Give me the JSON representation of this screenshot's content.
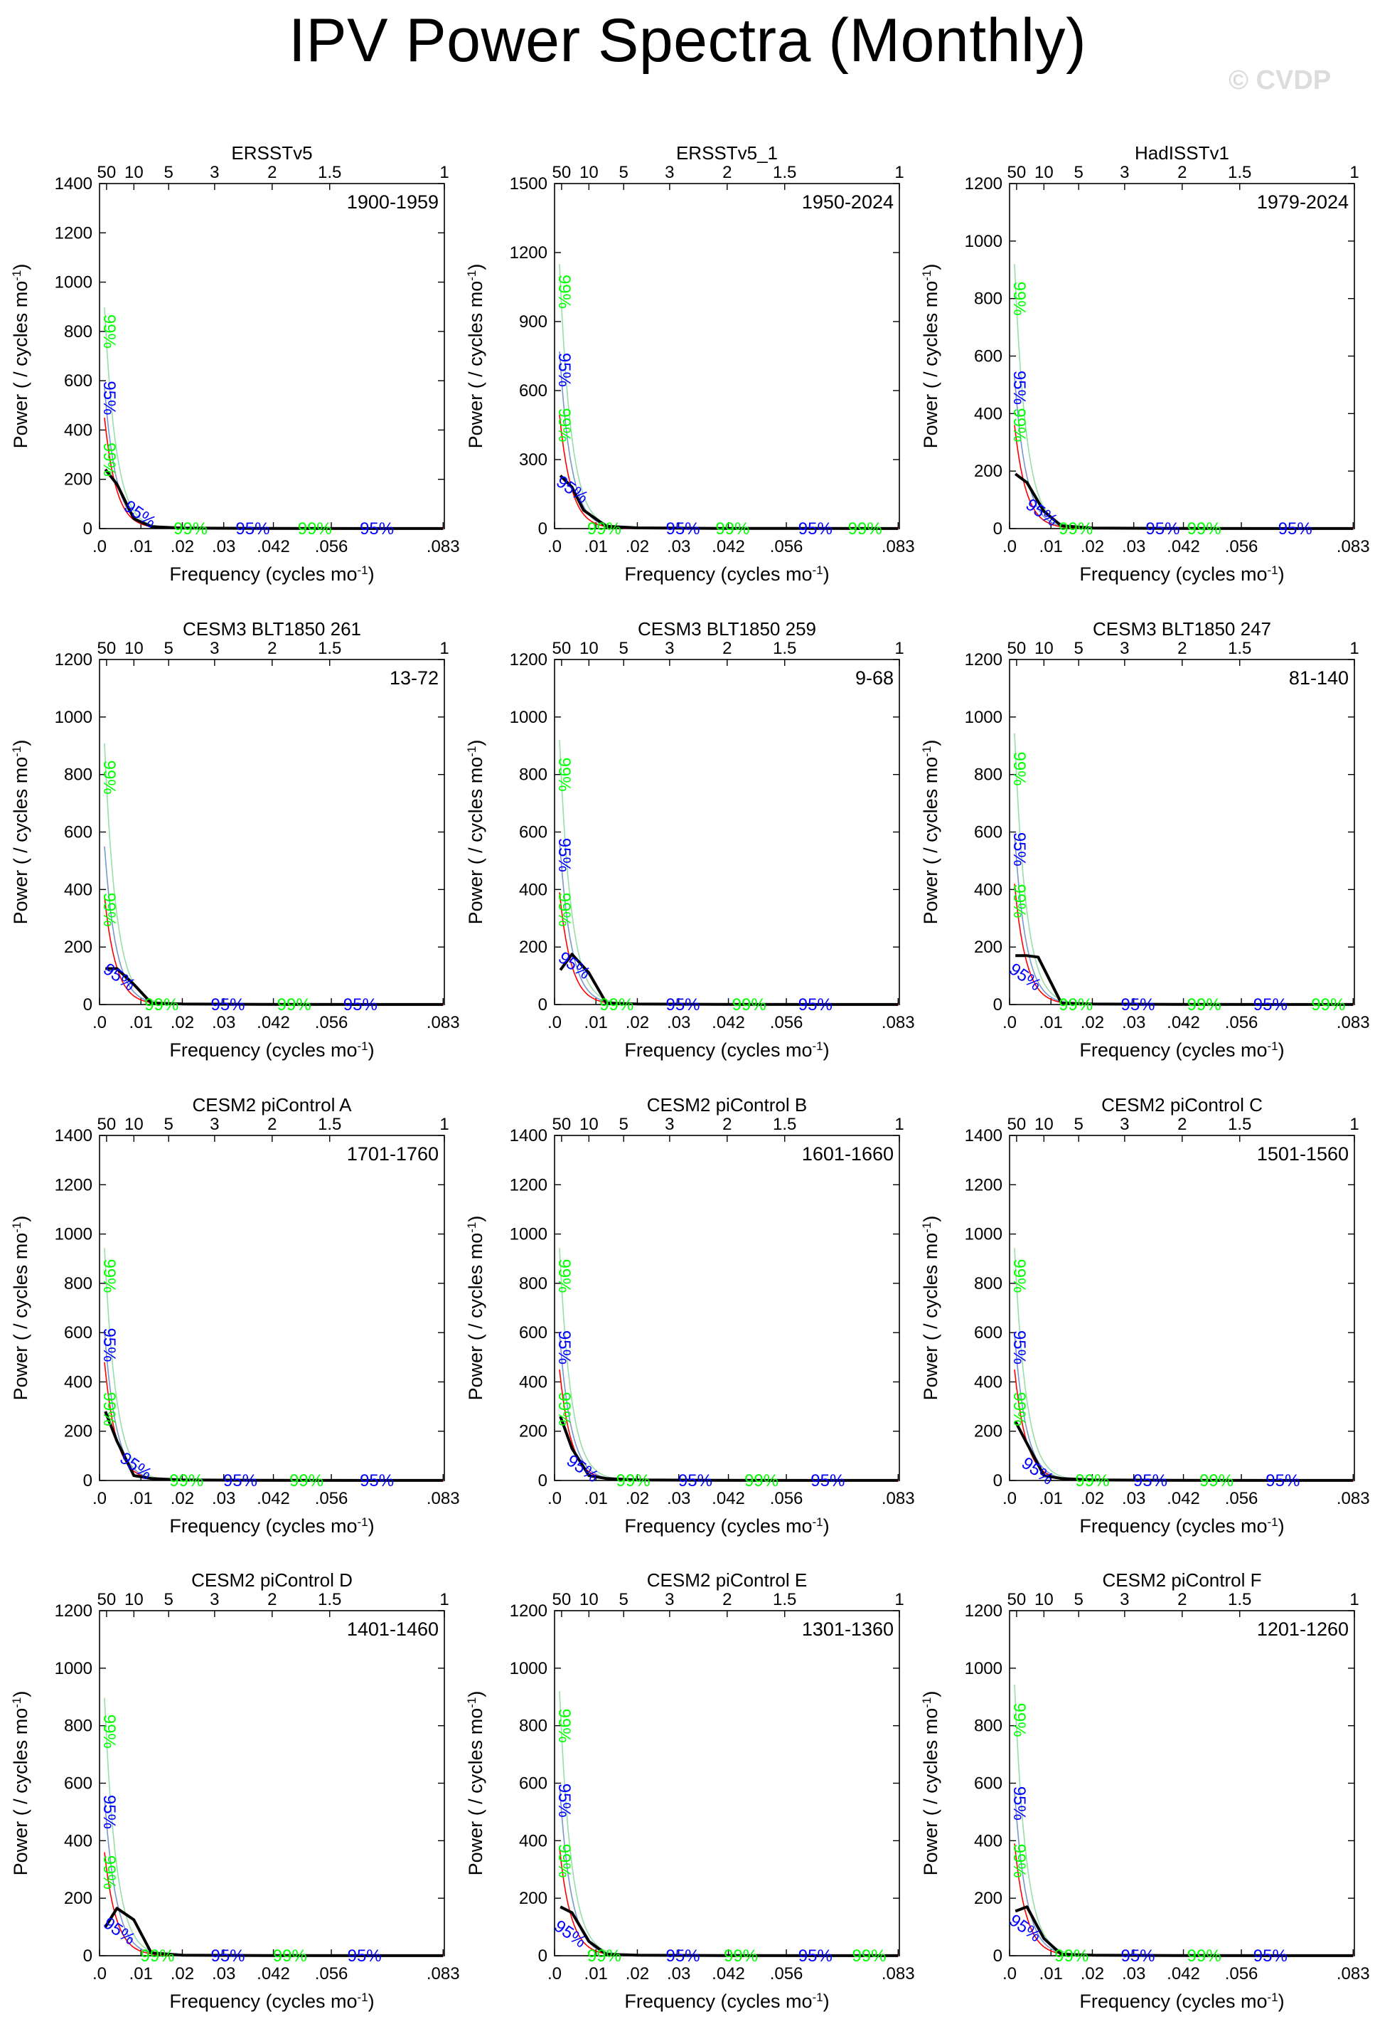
{
  "page": {
    "title": "IPV Power Spectra (Monthly)",
    "watermark": "© CVDP"
  },
  "colors": {
    "spectrum": "#000000",
    "red_noise": "#ff0000",
    "sig95": "#0000ff",
    "sig99": "#00ff00",
    "sig_line_95": "#7799cc",
    "sig_line_99": "#99ddaa",
    "axis": "#000000"
  },
  "axis_text": {
    "xlabel": "Frequency (cycles mo",
    "ylabel": "Power ( / cycles mo",
    "superscript": "-1",
    "bottom_ticks": [
      ".0",
      ".01",
      ".02",
      ".03",
      ".042",
      ".056",
      ".083"
    ],
    "top_ticks": [
      "50",
      "10",
      "5",
      "3",
      "2",
      "1.5",
      "1"
    ],
    "label95": "95%",
    "label99": "99%"
  },
  "chart_data": [
    {
      "type": "line",
      "title": "ERSSTv5",
      "period": "1900-1959",
      "ylim": [
        0,
        1400
      ],
      "yticks": [
        0,
        200,
        400,
        600,
        800,
        1000,
        1200,
        1400
      ],
      "x": [
        0.0014,
        0.0042,
        0.0083,
        0.0125,
        0.02,
        0.04,
        0.083
      ],
      "spectrum": [
        240,
        180,
        40,
        8,
        2,
        0.5,
        0.2
      ],
      "red_noise_peak": 300,
      "sig95_peak": 520,
      "sig99_peak": 780,
      "labels95": [
        [
          0.001,
          530
        ],
        [
          0.009,
          40
        ],
        [
          0.037,
          0
        ],
        [
          0.067,
          0
        ]
      ],
      "labels99": [
        [
          0.001,
          800
        ],
        [
          0.001,
          280
        ],
        [
          0.022,
          0
        ],
        [
          0.052,
          0
        ]
      ]
    },
    {
      "type": "line",
      "title": "ERSSTv5_1",
      "period": "1950-2024",
      "ylim": [
        0,
        1500
      ],
      "yticks": [
        0,
        300,
        600,
        900,
        1200,
        1500
      ],
      "x": [
        0.0014,
        0.0042,
        0.007,
        0.0125,
        0.02,
        0.04,
        0.083
      ],
      "spectrum": [
        230,
        180,
        80,
        10,
        3,
        1,
        0.2
      ],
      "red_noise_peak": 330,
      "sig95_peak": 700,
      "sig99_peak": 1000,
      "labels95": [
        [
          0.001,
          690
        ],
        [
          0.0035,
          150
        ],
        [
          0.031,
          0
        ],
        [
          0.063,
          0
        ]
      ],
      "labels99": [
        [
          0.001,
          1030
        ],
        [
          0.001,
          450
        ],
        [
          0.012,
          0
        ],
        [
          0.043,
          0
        ],
        [
          0.075,
          0
        ]
      ]
    },
    {
      "type": "line",
      "title": "HadISSTv1",
      "period": "1979-2024",
      "ylim": [
        0,
        1200
      ],
      "yticks": [
        0,
        200,
        400,
        600,
        800,
        1000,
        1200
      ],
      "x": [
        0.0014,
        0.0042,
        0.0083,
        0.0125,
        0.02,
        0.04,
        0.083
      ],
      "spectrum": [
        190,
        160,
        60,
        10,
        2,
        0.5,
        0.2
      ],
      "red_noise_peak": 240,
      "sig95_peak": 480,
      "sig99_peak": 800,
      "labels95": [
        [
          0.001,
          490
        ],
        [
          0.007,
          40
        ],
        [
          0.037,
          0
        ],
        [
          0.069,
          0
        ]
      ],
      "labels99": [
        [
          0.001,
          800
        ],
        [
          0.001,
          360
        ],
        [
          0.016,
          0
        ],
        [
          0.047,
          0
        ]
      ]
    },
    {
      "type": "line",
      "title": "CESM3 BLT1850 261",
      "period": "13-72",
      "ylim": [
        0,
        1200
      ],
      "yticks": [
        0,
        200,
        400,
        600,
        800,
        1000,
        1200
      ],
      "x": [
        0.0014,
        0.0042,
        0.0083,
        0.0125,
        0.02,
        0.04,
        0.083
      ],
      "spectrum": [
        125,
        125,
        70,
        5,
        2,
        0.5,
        0.2
      ],
      "red_noise_peak": 250,
      "sig95_peak": 500,
      "sig99_peak": 790,
      "labels95": [
        [
          0.004,
          80
        ],
        [
          0.031,
          0
        ],
        [
          0.063,
          0
        ]
      ],
      "labels99": [
        [
          0.001,
          790
        ],
        [
          0.001,
          330
        ],
        [
          0.015,
          0
        ],
        [
          0.047,
          0
        ]
      ]
    },
    {
      "type": "line",
      "title": "CESM3 BLT1850 259",
      "period": "9-68",
      "ylim": [
        0,
        1200
      ],
      "yticks": [
        0,
        200,
        400,
        600,
        800,
        1000,
        1200
      ],
      "x": [
        0.0014,
        0.0042,
        0.0083,
        0.0125,
        0.02,
        0.04,
        0.083
      ],
      "spectrum": [
        120,
        175,
        110,
        5,
        2,
        0.5,
        0.2
      ],
      "red_noise_peak": 260,
      "sig95_peak": 520,
      "sig99_peak": 800,
      "labels95": [
        [
          0.001,
          520
        ],
        [
          0.004,
          120
        ],
        [
          0.031,
          0
        ],
        [
          0.063,
          0
        ]
      ],
      "labels99": [
        [
          0.001,
          800
        ],
        [
          0.001,
          330
        ],
        [
          0.015,
          0
        ],
        [
          0.047,
          0
        ]
      ]
    },
    {
      "type": "line",
      "title": "CESM3 BLT1850 247",
      "period": "81-140",
      "ylim": [
        0,
        1200
      ],
      "yticks": [
        0,
        200,
        400,
        600,
        800,
        1000,
        1200
      ],
      "x": [
        0.0014,
        0.0042,
        0.0069,
        0.0125,
        0.02,
        0.04,
        0.083
      ],
      "spectrum": [
        170,
        170,
        165,
        5,
        2,
        0.5,
        0.2
      ],
      "red_noise_peak": 280,
      "sig95_peak": 540,
      "sig99_peak": 820,
      "labels95": [
        [
          0.001,
          540
        ],
        [
          0.003,
          80
        ],
        [
          0.031,
          0
        ],
        [
          0.063,
          0
        ]
      ],
      "labels99": [
        [
          0.001,
          820
        ],
        [
          0.001,
          360
        ],
        [
          0.016,
          0
        ],
        [
          0.047,
          0
        ],
        [
          0.077,
          0
        ]
      ]
    },
    {
      "type": "line",
      "title": "CESM2 piControl A",
      "period": "1701-1760",
      "ylim": [
        0,
        1400
      ],
      "yticks": [
        0,
        200,
        400,
        600,
        800,
        1000,
        1200,
        1400
      ],
      "x": [
        0.0014,
        0.0042,
        0.0083,
        0.0125,
        0.02,
        0.04,
        0.083
      ],
      "spectrum": [
        280,
        160,
        20,
        8,
        2,
        0.5,
        0.2
      ],
      "red_noise_peak": 320,
      "sig95_peak": 550,
      "sig99_peak": 820,
      "labels95": [
        [
          0.001,
          550
        ],
        [
          0.008,
          40
        ],
        [
          0.034,
          0
        ],
        [
          0.067,
          0
        ]
      ],
      "labels99": [
        [
          0.001,
          830
        ],
        [
          0.001,
          290
        ],
        [
          0.021,
          0
        ],
        [
          0.05,
          0
        ]
      ]
    },
    {
      "type": "line",
      "title": "CESM2 piControl B",
      "period": "1601-1660",
      "ylim": [
        0,
        1400
      ],
      "yticks": [
        0,
        200,
        400,
        600,
        800,
        1000,
        1200,
        1400
      ],
      "x": [
        0.0014,
        0.0042,
        0.0083,
        0.0125,
        0.02,
        0.04,
        0.083
      ],
      "spectrum": [
        260,
        130,
        20,
        8,
        2,
        0.5,
        0.2
      ],
      "red_noise_peak": 300,
      "sig95_peak": 540,
      "sig99_peak": 820,
      "labels95": [
        [
          0.001,
          540
        ],
        [
          0.006,
          30
        ],
        [
          0.034,
          0
        ],
        [
          0.066,
          0
        ]
      ],
      "labels99": [
        [
          0.001,
          830
        ],
        [
          0.001,
          290
        ],
        [
          0.019,
          0
        ],
        [
          0.05,
          0
        ]
      ]
    },
    {
      "type": "line",
      "title": "CESM2 piControl C",
      "period": "1501-1560",
      "ylim": [
        0,
        1400
      ],
      "yticks": [
        0,
        200,
        400,
        600,
        800,
        1000,
        1200,
        1400
      ],
      "x": [
        0.0014,
        0.0042,
        0.0083,
        0.0125,
        0.02,
        0.04,
        0.083
      ],
      "spectrum": [
        240,
        150,
        20,
        8,
        2,
        0.5,
        0.2
      ],
      "red_noise_peak": 300,
      "sig95_peak": 540,
      "sig99_peak": 820,
      "labels95": [
        [
          0.001,
          540
        ],
        [
          0.006,
          20
        ],
        [
          0.034,
          0
        ],
        [
          0.066,
          0
        ]
      ],
      "labels99": [
        [
          0.001,
          830
        ],
        [
          0.001,
          290
        ],
        [
          0.02,
          0
        ],
        [
          0.05,
          0
        ]
      ]
    },
    {
      "type": "line",
      "title": "CESM2 piControl D",
      "period": "1401-1460",
      "ylim": [
        0,
        1200
      ],
      "yticks": [
        0,
        200,
        400,
        600,
        800,
        1000,
        1200
      ],
      "x": [
        0.0014,
        0.0042,
        0.0083,
        0.0125,
        0.02,
        0.04,
        0.083
      ],
      "spectrum": [
        100,
        165,
        125,
        10,
        2,
        0.5,
        0.2
      ],
      "red_noise_peak": 240,
      "sig95_peak": 500,
      "sig99_peak": 780,
      "labels95": [
        [
          0.001,
          500
        ],
        [
          0.004,
          70
        ],
        [
          0.031,
          0
        ],
        [
          0.064,
          0
        ]
      ],
      "labels99": [
        [
          0.001,
          780
        ],
        [
          0.001,
          290
        ],
        [
          0.014,
          0
        ],
        [
          0.046,
          0
        ]
      ]
    },
    {
      "type": "line",
      "title": "CESM2 piControl E",
      "period": "1301-1360",
      "ylim": [
        0,
        1200
      ],
      "yticks": [
        0,
        200,
        400,
        600,
        800,
        1000,
        1200
      ],
      "x": [
        0.0014,
        0.0042,
        0.0083,
        0.0125,
        0.02,
        0.04,
        0.083
      ],
      "spectrum": [
        170,
        150,
        50,
        5,
        2,
        0.5,
        0.2
      ],
      "red_noise_peak": 250,
      "sig95_peak": 540,
      "sig99_peak": 800,
      "labels95": [
        [
          0.001,
          540
        ],
        [
          0.003,
          60
        ],
        [
          0.031,
          0
        ],
        [
          0.063,
          0
        ]
      ],
      "labels99": [
        [
          0.001,
          800
        ],
        [
          0.001,
          330
        ],
        [
          0.012,
          0
        ],
        [
          0.045,
          0
        ],
        [
          0.076,
          0
        ]
      ]
    },
    {
      "type": "line",
      "title": "CESM2 piControl F",
      "period": "1201-1260",
      "ylim": [
        0,
        1200
      ],
      "yticks": [
        0,
        200,
        400,
        600,
        800,
        1000,
        1200
      ],
      "x": [
        0.0014,
        0.0042,
        0.0083,
        0.0125,
        0.02,
        0.04,
        0.083
      ],
      "spectrum": [
        155,
        170,
        60,
        5,
        2,
        0.5,
        0.2
      ],
      "red_noise_peak": 260,
      "sig95_peak": 520,
      "sig99_peak": 820,
      "labels95": [
        [
          0.001,
          530
        ],
        [
          0.003,
          80
        ],
        [
          0.031,
          0
        ],
        [
          0.063,
          0
        ]
      ],
      "labels99": [
        [
          0.001,
          820
        ],
        [
          0.001,
          330
        ],
        [
          0.015,
          0
        ],
        [
          0.047,
          0
        ]
      ]
    }
  ]
}
